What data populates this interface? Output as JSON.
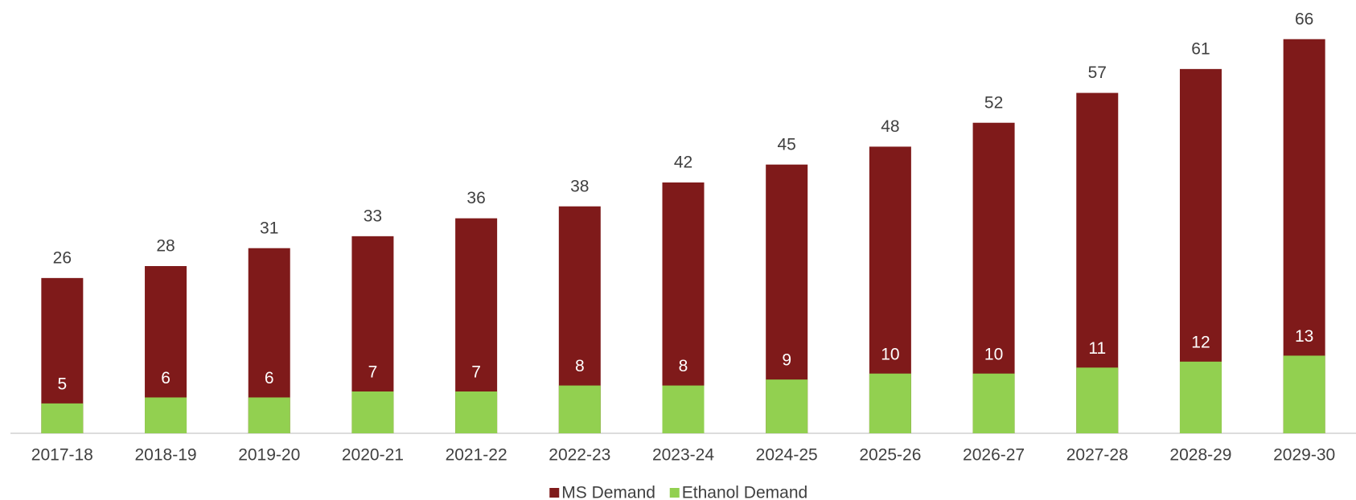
{
  "chart_data": {
    "type": "bar",
    "overlap": true,
    "categories": [
      "2017-18",
      "2018-19",
      "2019-20",
      "2020-21",
      "2021-22",
      "2022-23",
      "2023-24",
      "2024-25",
      "2025-26",
      "2026-27",
      "2027-28",
      "2028-29",
      "2029-30"
    ],
    "series": [
      {
        "name": "MS Demand",
        "color": "#7f1a1a",
        "values": [
          26,
          28,
          31,
          33,
          36,
          38,
          42,
          45,
          48,
          52,
          57,
          61,
          66
        ]
      },
      {
        "name": "Ethanol Demand",
        "color": "#92d050",
        "values": [
          5,
          6,
          6,
          7,
          7,
          8,
          8,
          9,
          10,
          10,
          11,
          12,
          13
        ]
      }
    ],
    "ylim": [
      0,
      70
    ],
    "legend": "bottom"
  }
}
